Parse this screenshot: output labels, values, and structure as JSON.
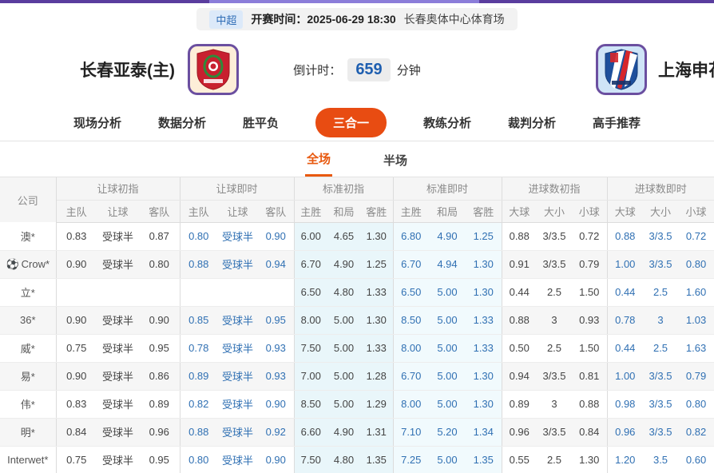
{
  "top": {
    "league": "中超",
    "kickoff_label": "开赛时间：",
    "kickoff_time": "2025-06-29 18:30",
    "venue": "长春奥体中心体育场"
  },
  "teams": {
    "home_name": "长春亚泰(主)",
    "away_name": "上海申花",
    "countdown_label": "倒计时：",
    "countdown_value": "659",
    "countdown_unit": "分钟"
  },
  "nav": {
    "items": [
      "现场分析",
      "数据分析",
      "胜平负",
      "三合一",
      "教练分析",
      "裁判分析",
      "高手推荐"
    ],
    "active": "三合一"
  },
  "subtabs": {
    "items": [
      "全场",
      "半场"
    ],
    "active": "全场"
  },
  "table": {
    "company_header": "公司",
    "groups": [
      {
        "label": "让球初指",
        "cols": [
          "主队",
          "让球",
          "客队"
        ]
      },
      {
        "label": "让球即时",
        "cols": [
          "主队",
          "让球",
          "客队"
        ]
      },
      {
        "label": "标准初指",
        "cols": [
          "主胜",
          "和局",
          "客胜"
        ]
      },
      {
        "label": "标准即时",
        "cols": [
          "主胜",
          "和局",
          "客胜"
        ]
      },
      {
        "label": "进球数初指",
        "cols": [
          "大球",
          "大小",
          "小球"
        ]
      },
      {
        "label": "进球数即时",
        "cols": [
          "大球",
          "大小",
          "小球"
        ]
      }
    ],
    "rows": [
      {
        "company": "澳*",
        "icon": false,
        "cells": [
          [
            "0.83",
            "受球半",
            "0.87"
          ],
          [
            "0.80",
            "受球半",
            "0.90"
          ],
          [
            "6.00",
            "4.65",
            "1.30"
          ],
          [
            "6.80",
            "4.90",
            "1.25"
          ],
          [
            "0.88",
            "3/3.5",
            "0.72"
          ],
          [
            "0.88",
            "3/3.5",
            "0.72"
          ]
        ]
      },
      {
        "company": "Crow*",
        "icon": true,
        "cells": [
          [
            "0.90",
            "受球半",
            "0.80"
          ],
          [
            "0.88",
            "受球半",
            "0.94"
          ],
          [
            "6.70",
            "4.90",
            "1.25"
          ],
          [
            "6.70",
            "4.94",
            "1.30"
          ],
          [
            "0.91",
            "3/3.5",
            "0.79"
          ],
          [
            "1.00",
            "3/3.5",
            "0.80"
          ]
        ]
      },
      {
        "company": "立*",
        "icon": false,
        "cells": [
          [
            "",
            "",
            ""
          ],
          [
            "",
            "",
            ""
          ],
          [
            "6.50",
            "4.80",
            "1.33"
          ],
          [
            "6.50",
            "5.00",
            "1.30"
          ],
          [
            "0.44",
            "2.5",
            "1.50"
          ],
          [
            "0.44",
            "2.5",
            "1.60"
          ]
        ]
      },
      {
        "company": "36*",
        "icon": false,
        "cells": [
          [
            "0.90",
            "受球半",
            "0.90"
          ],
          [
            "0.85",
            "受球半",
            "0.95"
          ],
          [
            "8.00",
            "5.00",
            "1.30"
          ],
          [
            "8.50",
            "5.00",
            "1.33"
          ],
          [
            "0.88",
            "3",
            "0.93"
          ],
          [
            "0.78",
            "3",
            "1.03"
          ]
        ]
      },
      {
        "company": "威*",
        "icon": false,
        "cells": [
          [
            "0.75",
            "受球半",
            "0.95"
          ],
          [
            "0.78",
            "受球半",
            "0.93"
          ],
          [
            "7.50",
            "5.00",
            "1.33"
          ],
          [
            "8.00",
            "5.00",
            "1.33"
          ],
          [
            "0.50",
            "2.5",
            "1.50"
          ],
          [
            "0.44",
            "2.5",
            "1.63"
          ]
        ]
      },
      {
        "company": "易*",
        "icon": false,
        "cells": [
          [
            "0.90",
            "受球半",
            "0.86"
          ],
          [
            "0.89",
            "受球半",
            "0.93"
          ],
          [
            "7.00",
            "5.00",
            "1.28"
          ],
          [
            "6.70",
            "5.00",
            "1.30"
          ],
          [
            "0.94",
            "3/3.5",
            "0.81"
          ],
          [
            "1.00",
            "3/3.5",
            "0.79"
          ]
        ]
      },
      {
        "company": "伟*",
        "icon": false,
        "cells": [
          [
            "0.83",
            "受球半",
            "0.89"
          ],
          [
            "0.82",
            "受球半",
            "0.90"
          ],
          [
            "8.50",
            "5.00",
            "1.29"
          ],
          [
            "8.00",
            "5.00",
            "1.30"
          ],
          [
            "0.89",
            "3",
            "0.88"
          ],
          [
            "0.98",
            "3/3.5",
            "0.80"
          ]
        ]
      },
      {
        "company": "明*",
        "icon": false,
        "cells": [
          [
            "0.84",
            "受球半",
            "0.96"
          ],
          [
            "0.88",
            "受球半",
            "0.92"
          ],
          [
            "6.60",
            "4.90",
            "1.31"
          ],
          [
            "7.10",
            "5.20",
            "1.34"
          ],
          [
            "0.96",
            "3/3.5",
            "0.84"
          ],
          [
            "0.96",
            "3/3.5",
            "0.82"
          ]
        ]
      },
      {
        "company": "Interwet*",
        "icon": false,
        "cells": [
          [
            "0.75",
            "受球半",
            "0.95"
          ],
          [
            "0.80",
            "受球半",
            "0.90"
          ],
          [
            "7.50",
            "4.80",
            "1.35"
          ],
          [
            "7.25",
            "5.00",
            "1.35"
          ],
          [
            "0.55",
            "2.5",
            "1.30"
          ],
          [
            "1.20",
            "3.5",
            "0.60"
          ]
        ]
      }
    ]
  },
  "icons": {
    "soccer_ball": "⚽"
  },
  "colors": {
    "accent_orange": "#e84c12",
    "live_blue": "#3070b3",
    "badge_blue_bg": "#dce9f9",
    "badge_blue_text": "#2e6cb5",
    "cyan_col_initial": "#e9f6fa",
    "cyan_col_live": "#f1fafd",
    "topbar_purple": "#5a3d9e"
  }
}
